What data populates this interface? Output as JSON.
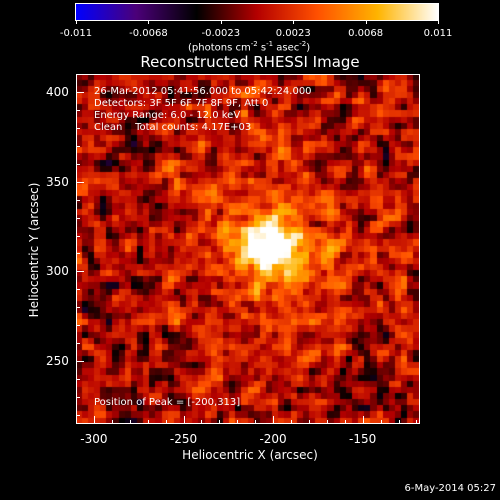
{
  "colorbar": {
    "tick_labels": [
      "-0.011",
      "-0.0068",
      "-0.0023",
      "0.0023",
      "0.0068",
      "0.011"
    ],
    "units_prefix": "(photons cm",
    "units_exp1": "-2",
    "units_mid": " s",
    "units_exp2": "-1",
    "units_mid2": " asec",
    "units_exp3": "-2",
    "units_suffix": ")"
  },
  "title": "Reconstructed RHESSI Image",
  "annotations": {
    "time_range": "26-Mar-2012 05:41:56.000 to 05:42:24.000",
    "detectors": "Detectors: 3F 5F 6F 7F 8F 9F, Att 0",
    "energy": "Energy Range: 6.0 - 12.0 keV",
    "clean": "Clean    Total counts: 4.17E+03",
    "peak": "Position of Peak = [-200,313]"
  },
  "axes": {
    "x_label": "Heliocentric X (arcsec)",
    "y_label": "Heliocentric Y (arcsec)",
    "x_ticks": [
      "-300",
      "-250",
      "-200",
      "-150"
    ],
    "y_ticks": [
      "400",
      "350",
      "300",
      "250"
    ]
  },
  "datestamp": "6-May-2014 05:27",
  "chart_data": {
    "type": "heatmap",
    "title": "Reconstructed RHESSI Image",
    "xlabel": "Heliocentric X (arcsec)",
    "ylabel": "Heliocentric Y (arcsec)",
    "xlim": [
      -310,
      -118
    ],
    "ylim": [
      215,
      410
    ],
    "colorbar_range": [
      -0.011,
      0.011
    ],
    "peak": [
      -200,
      313
    ],
    "colormap": [
      "#0000ff",
      "#4b0078",
      "#000000",
      "#b40000",
      "#ff5000",
      "#ffb400",
      "#ffffff"
    ]
  }
}
